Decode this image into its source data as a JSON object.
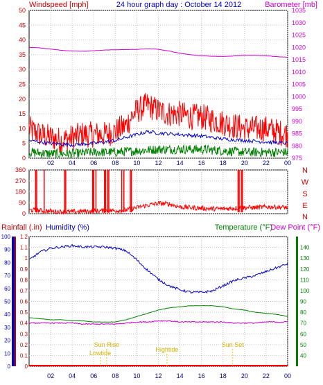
{
  "header": {
    "title": "24 hour graph day : October 14 2012",
    "left_label": "Windspeed [mph]",
    "right_label": "Barometer [mb]"
  },
  "colors": {
    "wind": "#ff0000",
    "wind_avg": "#0000cc",
    "wind_low": "#008000",
    "barometer": "#cc00cc",
    "direction": "#ff0000",
    "rain": "#ff0000",
    "humidity": "#0000cc",
    "temperature": "#008000",
    "dewpoint": "#cc00cc",
    "annotation": "#e6c800",
    "grid": "#c0c0c0"
  },
  "x_ticks": [
    "02",
    "04",
    "06",
    "08",
    "10",
    "12",
    "14",
    "16",
    "18",
    "20",
    "22",
    "00"
  ],
  "chart_data": [
    {
      "type": "line",
      "title": "24 hour graph day : October 14 2012",
      "xlabel": "",
      "ylabel": "Windspeed [mph]",
      "y2label": "Barometer [mb]",
      "x_range_hours": [
        0,
        24
      ],
      "ylim": [
        0,
        50
      ],
      "y2lim": [
        975,
        1035
      ],
      "y_ticks": [
        "0",
        "5",
        "10",
        "15",
        "20",
        "25",
        "30",
        "35",
        "40",
        "45",
        "50"
      ],
      "y2_ticks": [
        "975",
        "980",
        "985",
        "990",
        "995",
        "1000",
        "1005",
        "1010",
        "1015",
        "1020",
        "1025",
        "1030",
        "1035"
      ],
      "grid": true,
      "series": [
        {
          "name": "Windspeed [mph]",
          "axis": "left",
          "role": "gust",
          "x": [
            0,
            1,
            2,
            3,
            4,
            5,
            6,
            7,
            8,
            9,
            9.5,
            10,
            10.5,
            11,
            11.5,
            12,
            13,
            14,
            15,
            16,
            17,
            18,
            19,
            20,
            21,
            22,
            23,
            24
          ],
          "values": [
            10,
            8,
            7,
            6,
            7,
            8,
            8,
            8,
            9,
            11,
            14,
            16,
            17,
            18,
            17,
            16,
            15,
            15,
            14,
            14,
            13,
            12,
            11,
            10,
            10,
            10,
            9,
            8
          ]
        },
        {
          "name": "average wind",
          "axis": "left",
          "role": "avg",
          "x": [
            0,
            2,
            4,
            6,
            8,
            10,
            11,
            12,
            14,
            16,
            18,
            20,
            22,
            24
          ],
          "values": [
            6,
            5,
            4.5,
            5,
            6,
            8,
            9,
            8.5,
            8,
            7.5,
            6.5,
            6,
            5.5,
            5
          ]
        },
        {
          "name": "low wind",
          "axis": "left",
          "role": "low",
          "x": [
            0,
            2,
            4,
            6,
            8,
            10,
            12,
            14,
            16,
            18,
            20,
            22,
            24
          ],
          "values": [
            2,
            1.5,
            1.5,
            2,
            2,
            2.5,
            3,
            3,
            3,
            2.5,
            2,
            2,
            2
          ]
        },
        {
          "name": "Barometer [mb]",
          "axis": "right",
          "x": [
            0,
            1,
            2,
            3,
            4,
            5,
            6,
            7,
            8,
            9,
            10,
            11,
            12,
            13,
            14,
            15,
            16,
            17,
            18,
            19,
            20,
            21,
            22,
            23,
            24
          ],
          "values": [
            1020.0,
            1019.8,
            1019.3,
            1018.8,
            1018.5,
            1018.4,
            1018.6,
            1018.9,
            1019.0,
            1019.1,
            1019.2,
            1019.4,
            1019.2,
            1018.5,
            1017.6,
            1017.0,
            1016.6,
            1016.4,
            1016.3,
            1016.5,
            1016.8,
            1016.8,
            1016.6,
            1016.2,
            1016.0
          ]
        }
      ]
    },
    {
      "type": "scatter",
      "title": "",
      "ylim": [
        0,
        360
      ],
      "y_ticks": [
        "0",
        "90",
        "180",
        "270",
        "360"
      ],
      "right_labels": [
        "N",
        "W",
        "S",
        "E",
        "N"
      ],
      "grid": true,
      "series": [
        {
          "name": "direction",
          "x": [
            0,
            1,
            2,
            3,
            4,
            5,
            6,
            7,
            8,
            9,
            10,
            11,
            12,
            13,
            14,
            15,
            16,
            17,
            18,
            19,
            20,
            21,
            22,
            23,
            24
          ],
          "values": [
            30,
            25,
            20,
            15,
            15,
            20,
            20,
            25,
            25,
            30,
            50,
            70,
            85,
            80,
            55,
            50,
            45,
            40,
            40,
            45,
            50,
            50,
            55,
            55,
            50
          ]
        }
      ]
    },
    {
      "type": "line",
      "title": "",
      "left_labels": [
        "Rainfall (.in)",
        "Humidity (%)"
      ],
      "right_labels": [
        "Temperature (°F)",
        "Dew Point (°F)"
      ],
      "rain_ticks": [
        "0",
        "0.1",
        "0.2",
        "0.3",
        "0.4",
        "0.5",
        "0.6",
        "0.7",
        "0.8",
        "0.9",
        "1",
        "1.1",
        "1.2"
      ],
      "humidity_ticks": [
        "0",
        "10",
        "20",
        "30",
        "40",
        "50",
        "60",
        "70",
        "80",
        "90",
        "100"
      ],
      "temp_ticks": [
        "40",
        "50",
        "60",
        "70",
        "80",
        "90",
        "100",
        "110",
        "120",
        "130",
        "140"
      ],
      "rain_ylim": [
        0,
        1.2
      ],
      "humidity_ylim": [
        0,
        100
      ],
      "temp_ylim": [
        30,
        150
      ],
      "annotations": [
        {
          "label": "Lowtide",
          "hour": 6.6
        },
        {
          "label": "Sun Rise",
          "hour": 7.2
        },
        {
          "label": "Hightide",
          "hour": 12.8
        },
        {
          "label": "Sun Set",
          "hour": 18.9
        }
      ],
      "series": [
        {
          "name": "Humidity (%)",
          "axis": "humidity",
          "x": [
            0,
            1,
            2,
            3,
            4,
            5,
            6,
            7,
            8,
            9,
            10,
            11,
            12,
            13,
            14,
            15,
            16,
            17,
            18,
            19,
            20,
            21,
            22,
            23,
            24
          ],
          "values": [
            82,
            88,
            91,
            92,
            93,
            92,
            92,
            92,
            91,
            89,
            82,
            74,
            67,
            62,
            59,
            57,
            57,
            58,
            62,
            66,
            68,
            70,
            73,
            76,
            79
          ]
        },
        {
          "name": "Temperature (°F)",
          "axis": "temp",
          "x": [
            0,
            1,
            2,
            3,
            4,
            5,
            6,
            7,
            8,
            9,
            10,
            11,
            12,
            13,
            14,
            15,
            16,
            17,
            18,
            19,
            20,
            21,
            22,
            23,
            24
          ],
          "values": [
            75,
            74,
            73,
            73,
            72,
            72,
            71,
            71,
            71,
            73,
            76,
            79,
            82,
            84,
            85,
            86,
            86,
            86,
            85,
            83,
            82,
            80,
            79,
            78,
            76
          ]
        },
        {
          "name": "Dew Point (°F)",
          "axis": "temp",
          "x": [
            0,
            1,
            2,
            3,
            4,
            5,
            6,
            7,
            8,
            9,
            10,
            11,
            12,
            13,
            14,
            15,
            16,
            17,
            18,
            19,
            20,
            21,
            22,
            23,
            24
          ],
          "values": [
            70,
            70,
            70,
            70,
            70,
            69,
            69,
            69,
            69,
            70,
            71,
            71,
            72,
            72,
            71,
            71,
            71,
            71,
            71,
            70,
            70,
            70,
            71,
            71,
            71
          ]
        },
        {
          "name": "Rainfall (.in)",
          "axis": "rain",
          "x": [
            0,
            24
          ],
          "values": [
            0,
            0
          ]
        }
      ]
    }
  ]
}
